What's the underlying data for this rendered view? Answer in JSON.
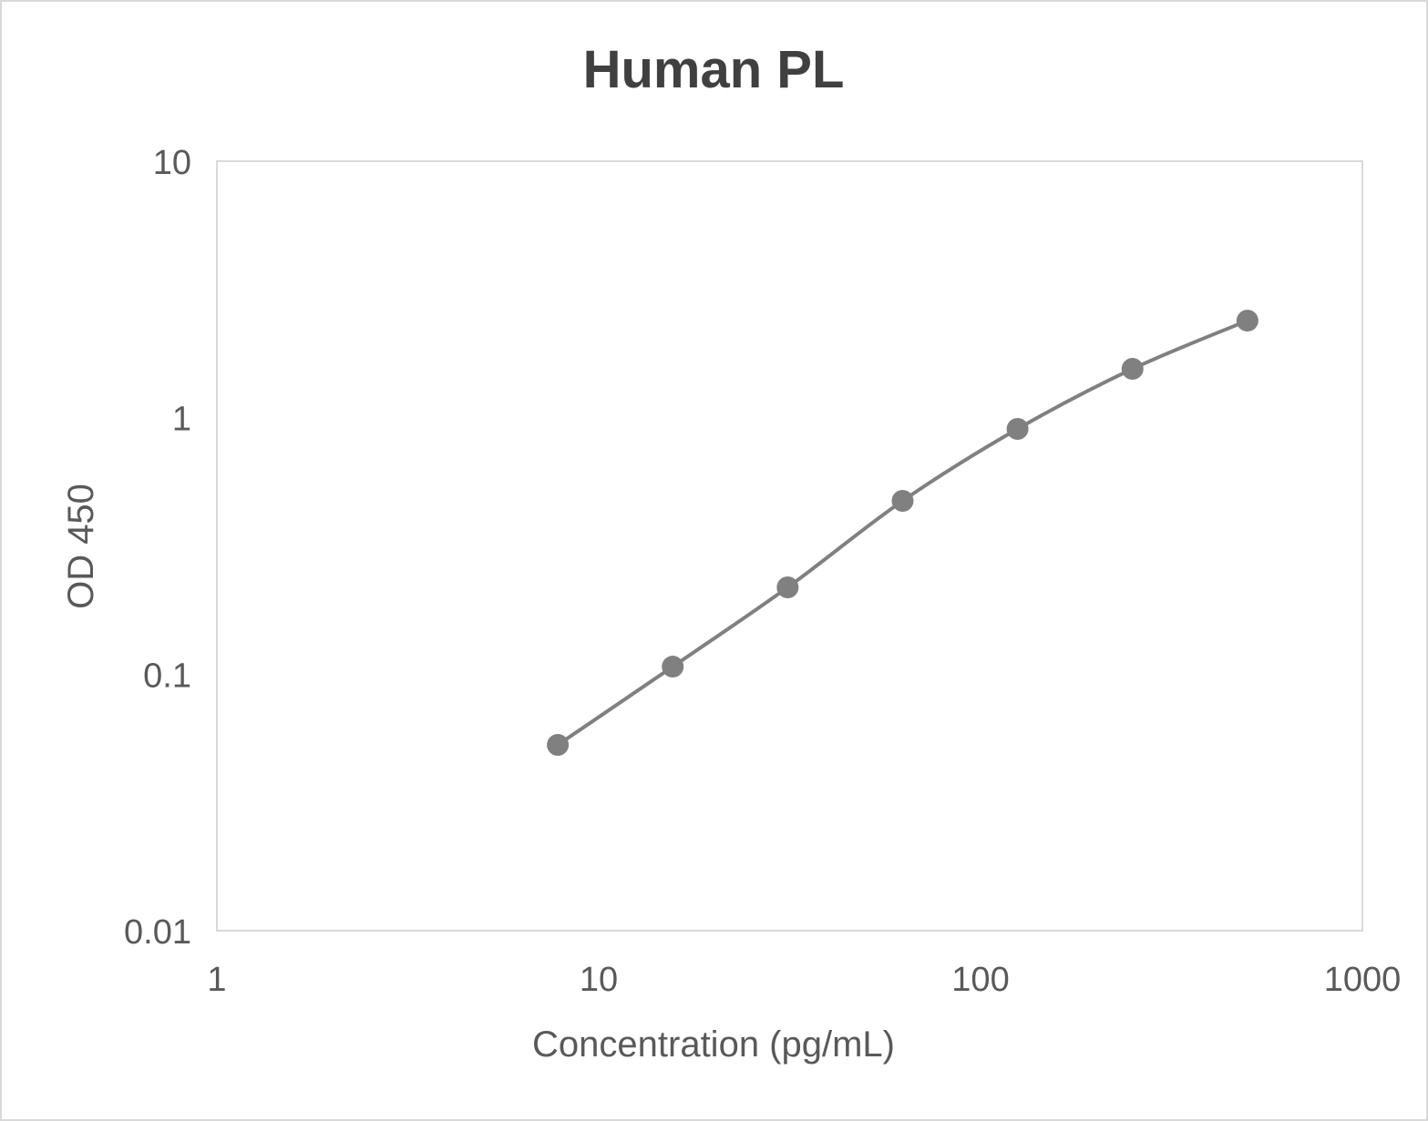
{
  "chart_data": {
    "type": "scatter",
    "title": "Human PL",
    "xlabel": "Concentration (pg/mL)",
    "ylabel": "OD 450",
    "x_scale": "log",
    "y_scale": "log",
    "xlim": [
      1,
      1000
    ],
    "ylim": [
      0.01,
      10
    ],
    "x_ticks": [
      "1",
      "10",
      "100",
      "1000"
    ],
    "y_ticks": [
      "0.01",
      "0.1",
      "1",
      "10"
    ],
    "grid": false,
    "smoothed_line": true,
    "series": [
      {
        "x": [
          7.8125,
          15.625,
          31.25,
          62.5,
          125,
          250,
          500
        ],
        "y": [
          0.053,
          0.107,
          0.218,
          0.474,
          0.904,
          1.55,
          2.39
        ],
        "color": "#808080"
      }
    ]
  }
}
